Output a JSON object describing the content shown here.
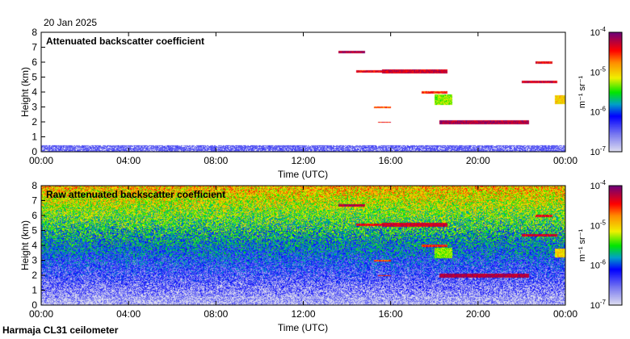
{
  "date_label": "20 Jan 2025",
  "footer": "Harmaja CL31 ceilometer",
  "chart_data": [
    {
      "type": "heatmap",
      "title": "Attenuated backscatter coefficient",
      "xlabel": "Time (UTC)",
      "ylabel": "Height (km)",
      "xlim_hours": [
        0,
        24
      ],
      "ylim": [
        0,
        8
      ],
      "xticks": [
        "00:00",
        "04:00",
        "08:00",
        "12:00",
        "16:00",
        "20:00",
        "00:00"
      ],
      "yticks": [
        "0",
        "1",
        "2",
        "3",
        "4",
        "5",
        "6",
        "7",
        "8"
      ],
      "colorbar": {
        "label": "m-1 sr-1",
        "ticks": [
          "10-7",
          "10-6",
          "10-5",
          "10-4"
        ],
        "range_log10": [
          -7,
          -4
        ],
        "scale": "log"
      },
      "noise": false,
      "features": [
        {
          "start_h": 13.6,
          "end_h": 14.8,
          "height_km": 6.7,
          "thickness_km": 0.15,
          "log10_value": -4.2
        },
        {
          "start_h": 14.4,
          "end_h": 15.6,
          "height_km": 5.4,
          "thickness_km": 0.2,
          "log10_value": -4.4
        },
        {
          "start_h": 15.6,
          "end_h": 18.6,
          "height_km": 5.4,
          "thickness_km": 0.25,
          "log10_value": -4.3
        },
        {
          "start_h": 17.4,
          "end_h": 18.6,
          "height_km": 4.0,
          "thickness_km": 0.15,
          "log10_value": -4.5
        },
        {
          "start_h": 15.2,
          "end_h": 16.0,
          "height_km": 3.0,
          "thickness_km": 0.15,
          "log10_value": -4.6
        },
        {
          "start_h": 15.4,
          "end_h": 16.0,
          "height_km": 2.0,
          "thickness_km": 0.1,
          "log10_value": -4.5
        },
        {
          "start_h": 18.0,
          "end_h": 18.8,
          "height_km": 3.5,
          "thickness_km": 0.7,
          "log10_value": -5.3
        },
        {
          "start_h": 18.2,
          "end_h": 22.3,
          "height_km": 2.0,
          "thickness_km": 0.3,
          "log10_value": -4.2
        },
        {
          "start_h": 22.0,
          "end_h": 23.6,
          "height_km": 4.7,
          "thickness_km": 0.2,
          "log10_value": -4.3
        },
        {
          "start_h": 22.6,
          "end_h": 23.4,
          "height_km": 6.0,
          "thickness_km": 0.15,
          "log10_value": -4.4
        },
        {
          "start_h": 23.5,
          "end_h": 24.0,
          "height_km": 3.5,
          "thickness_km": 0.6,
          "log10_value": -5.0
        }
      ]
    },
    {
      "type": "heatmap",
      "title": "Raw attenuated backscatter coefficient",
      "xlabel": "Time (UTC)",
      "ylabel": "Height (km)",
      "xlim_hours": [
        0,
        24
      ],
      "ylim": [
        0,
        8
      ],
      "xticks": [
        "00:00",
        "04:00",
        "08:00",
        "12:00",
        "16:00",
        "20:00",
        "00:00"
      ],
      "yticks": [
        "0",
        "1",
        "2",
        "3",
        "4",
        "5",
        "6",
        "7",
        "8"
      ],
      "colorbar": {
        "label": "m-1 sr-1",
        "ticks": [
          "10-7",
          "10-6",
          "10-5",
          "10-4"
        ],
        "range_log10": [
          -7,
          -4
        ],
        "scale": "log"
      },
      "noise": true
    }
  ]
}
